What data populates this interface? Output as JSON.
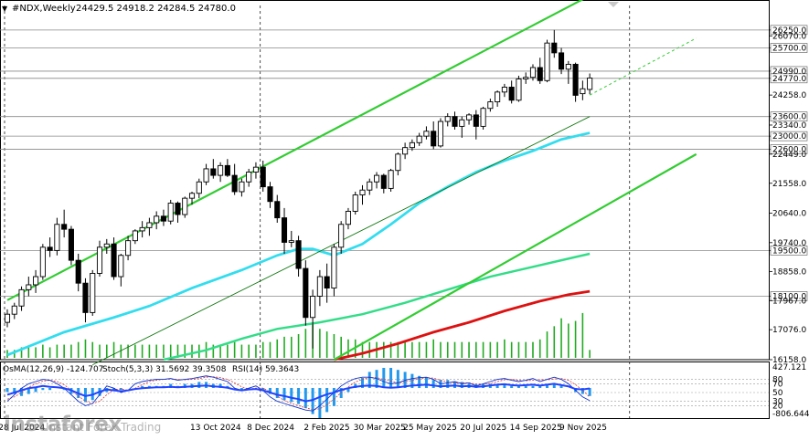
{
  "header": {
    "symbol": "#NDX,Weekly",
    "ohlc": "24429.5 24918.2 24284.5 24780.0"
  },
  "indicator_header": {
    "osma": "OsMA(12,26,9) -124.707",
    "stoch": "Stoch(5,3,3) 31.5692 39.3508",
    "rsi": "RSI(14) 59.3643"
  },
  "watermark": {
    "brand": "instaforex",
    "tagline": "Instant Forex Trading"
  },
  "colors": {
    "grid": "#e6e6e6",
    "candle": "#000000",
    "channel": "#33cc33",
    "ma_cyan": "#33ddee",
    "ma_green": "#33dd88",
    "ma_red": "#dd1111",
    "volume": "#22aa22",
    "osma_bar": "#2299ee",
    "stoch_main": "#1133cc",
    "stoch_signal": "#dd3333",
    "rsi": "#2244ff",
    "dotted_trend": "#33cc33",
    "thin_trend": "#117711"
  },
  "chart_data": {
    "type": "candlestick",
    "timeframe": "Weekly",
    "ylim": [
      16158.0,
      27000.0
    ],
    "y_ticks": [
      26250.0,
      26070.0,
      25700.0,
      24990.0,
      24770.0,
      24258.0,
      23600.0,
      23340.0,
      23000.0,
      22600.0,
      22449.0,
      21558.0,
      20640.0,
      19740.0,
      19500.0,
      18858.0,
      18100.0,
      17967.0,
      17076.0,
      16158.0
    ],
    "levels": [
      26250.0,
      25700.0,
      24990.0,
      24770.0,
      23600.0,
      23000.0,
      22600.0,
      19500.0,
      18100.0
    ],
    "x_labels": [
      "28 Jul 2024",
      "13 Oct 2024",
      "8 Dec 2024",
      "2 Feb 2025",
      "30 Mar 2025",
      "25 May 2025",
      "20 Jul 2025",
      "14 Sep 2025",
      "9 Nov 2025"
    ],
    "candles": [
      [
        17300,
        17700,
        17150,
        17550
      ],
      [
        17550,
        17900,
        17400,
        17800
      ],
      [
        17800,
        18400,
        17650,
        18300
      ],
      [
        18300,
        18700,
        18100,
        18450
      ],
      [
        18450,
        18900,
        18200,
        18700
      ],
      [
        18700,
        19700,
        18600,
        19600
      ],
      [
        19600,
        19900,
        19300,
        19500
      ],
      [
        19500,
        20500,
        19350,
        20300
      ],
      [
        20300,
        20750,
        19900,
        20150
      ],
      [
        20150,
        20250,
        19050,
        19200
      ],
      [
        19200,
        19400,
        18250,
        18500
      ],
      [
        18500,
        18650,
        17300,
        17600
      ],
      [
        17600,
        18900,
        17500,
        18800
      ],
      [
        18800,
        19800,
        18700,
        19600
      ],
      [
        19600,
        19850,
        19400,
        19700
      ],
      [
        19700,
        19900,
        18600,
        18700
      ],
      [
        18700,
        19400,
        18400,
        19350
      ],
      [
        19350,
        19950,
        19200,
        19800
      ],
      [
        19800,
        20150,
        19700,
        20100
      ],
      [
        20100,
        20400,
        19900,
        20200
      ],
      [
        20200,
        20500,
        19950,
        20350
      ],
      [
        20350,
        20700,
        20150,
        20550
      ],
      [
        20550,
        20750,
        20250,
        20400
      ],
      [
        20400,
        21050,
        20300,
        20950
      ],
      [
        20950,
        21000,
        20350,
        20600
      ],
      [
        20600,
        21150,
        20500,
        21100
      ],
      [
        21100,
        21300,
        20900,
        21250
      ],
      [
        21250,
        21700,
        21100,
        21600
      ],
      [
        21600,
        22150,
        21500,
        22000
      ],
      [
        22000,
        22300,
        21700,
        21800
      ],
      [
        21800,
        22200,
        21600,
        22100
      ],
      [
        22100,
        22300,
        21750,
        21800
      ],
      [
        21800,
        22150,
        21200,
        21300
      ],
      [
        21300,
        21700,
        21150,
        21600
      ],
      [
        21600,
        22000,
        21450,
        21900
      ],
      [
        21900,
        22200,
        21700,
        22050
      ],
      [
        22050,
        22250,
        21300,
        21450
      ],
      [
        21450,
        21600,
        20800,
        21000
      ],
      [
        21000,
        21200,
        20350,
        20500
      ],
      [
        20500,
        20800,
        19400,
        19750
      ],
      [
        19750,
        20100,
        19600,
        19800
      ],
      [
        19800,
        19950,
        18700,
        18950
      ],
      [
        18950,
        19200,
        17200,
        17450
      ],
      [
        17450,
        18300,
        16500,
        18100
      ],
      [
        18100,
        18900,
        17800,
        18700
      ],
      [
        18700,
        19100,
        17900,
        18350
      ],
      [
        18350,
        19700,
        18100,
        19600
      ],
      [
        19600,
        20400,
        19400,
        20300
      ],
      [
        20300,
        20800,
        20150,
        20700
      ],
      [
        20700,
        21300,
        20600,
        21200
      ],
      [
        21200,
        21500,
        20900,
        21350
      ],
      [
        21350,
        21700,
        21200,
        21600
      ],
      [
        21600,
        21900,
        21400,
        21800
      ],
      [
        21800,
        21850,
        21250,
        21400
      ],
      [
        21400,
        22000,
        21300,
        21950
      ],
      [
        21950,
        22500,
        21800,
        22450
      ],
      [
        22450,
        22800,
        22300,
        22650
      ],
      [
        22650,
        22900,
        22550,
        22800
      ],
      [
        22800,
        23100,
        22700,
        23000
      ],
      [
        23000,
        23300,
        22900,
        23150
      ],
      [
        23150,
        23450,
        22600,
        22700
      ],
      [
        22700,
        23550,
        22650,
        23450
      ],
      [
        23450,
        23700,
        23300,
        23600
      ],
      [
        23600,
        23750,
        23200,
        23300
      ],
      [
        23300,
        23600,
        22950,
        23500
      ],
      [
        23500,
        23700,
        23350,
        23650
      ],
      [
        23650,
        23800,
        22900,
        23300
      ],
      [
        23300,
        23900,
        23200,
        23850
      ],
      [
        23850,
        24150,
        23750,
        24050
      ],
      [
        24050,
        24400,
        23900,
        24350
      ],
      [
        24350,
        24600,
        24200,
        24500
      ],
      [
        24500,
        24700,
        24000,
        24100
      ],
      [
        24100,
        24850,
        24050,
        24750
      ],
      [
        24750,
        24950,
        24600,
        24800
      ],
      [
        24800,
        25200,
        24700,
        25100
      ],
      [
        25100,
        25400,
        24600,
        24700
      ],
      [
        24700,
        25950,
        24650,
        25850
      ],
      [
        25850,
        26250,
        25400,
        25550
      ],
      [
        25550,
        25700,
        24900,
        25050
      ],
      [
        25050,
        25300,
        24600,
        25200
      ],
      [
        25200,
        25250,
        24050,
        24250
      ],
      [
        24300,
        24700,
        24100,
        24450
      ],
      [
        24429.5,
        24918.2,
        24284.5,
        24780.0
      ]
    ],
    "volume": [
      3,
      3,
      4,
      4,
      4,
      5,
      4,
      5,
      5,
      5,
      6,
      7,
      6,
      5,
      5,
      6,
      5,
      5,
      5,
      5,
      5,
      5,
      5,
      5,
      5,
      5,
      5,
      5,
      6,
      5,
      5,
      5,
      6,
      5,
      5,
      5,
      6,
      6,
      7,
      8,
      8,
      9,
      11,
      13,
      11,
      10,
      9,
      8,
      7,
      7,
      6,
      6,
      6,
      6,
      6,
      6,
      6,
      6,
      6,
      6,
      7,
      6,
      6,
      6,
      6,
      6,
      6,
      6,
      6,
      6,
      7,
      6,
      6,
      6,
      6,
      7,
      10,
      12,
      15,
      13,
      14,
      17,
      3
    ],
    "volume_max": 18,
    "ma_cyan": [
      [
        0,
        16300
      ],
      [
        8,
        17000
      ],
      [
        15,
        17450
      ],
      [
        20,
        17800
      ],
      [
        26,
        18350
      ],
      [
        33,
        18900
      ],
      [
        38,
        19350
      ],
      [
        41,
        19550
      ],
      [
        43,
        19550
      ],
      [
        46,
        19350
      ],
      [
        50,
        19700
      ],
      [
        54,
        20300
      ],
      [
        58,
        20950
      ],
      [
        62,
        21450
      ],
      [
        66,
        21900
      ],
      [
        70,
        22250
      ],
      [
        74,
        22550
      ],
      [
        78,
        22900
      ],
      [
        82,
        23100
      ]
    ],
    "ma_green": [
      [
        22,
        16158
      ],
      [
        28,
        16450
      ],
      [
        33,
        16800
      ],
      [
        38,
        17100
      ],
      [
        44,
        17300
      ],
      [
        50,
        17550
      ],
      [
        56,
        17900
      ],
      [
        62,
        18300
      ],
      [
        68,
        18700
      ],
      [
        74,
        19000
      ],
      [
        78,
        19200
      ],
      [
        82,
        19400
      ]
    ],
    "ma_red": [
      [
        46,
        16158
      ],
      [
        50,
        16350
      ],
      [
        55,
        16650
      ],
      [
        60,
        17000
      ],
      [
        65,
        17300
      ],
      [
        70,
        17650
      ],
      [
        75,
        17950
      ],
      [
        79,
        18150
      ],
      [
        82,
        18250
      ]
    ],
    "osma": [
      -2,
      -3,
      -4,
      -3,
      -2,
      -1,
      -1,
      0,
      -1,
      -3,
      -5,
      -7,
      -6,
      -4,
      -2,
      -1,
      -1,
      0,
      0,
      1,
      1,
      1,
      1,
      2,
      1,
      2,
      2,
      3,
      3,
      2,
      2,
      1,
      0,
      -1,
      -1,
      0,
      -1,
      -3,
      -5,
      -6,
      -7,
      -8,
      -10,
      -13,
      -15,
      -12,
      -9,
      -5,
      -2,
      2,
      5,
      8,
      9,
      10,
      10,
      9,
      8,
      7,
      6,
      5,
      4,
      4,
      4,
      3,
      3,
      2,
      2,
      2,
      2,
      2,
      2,
      1,
      1,
      1,
      1,
      1,
      2,
      2,
      1,
      0,
      -2,
      -3,
      -4
    ],
    "stoch_main": [
      30,
      45,
      60,
      70,
      75,
      80,
      78,
      70,
      60,
      45,
      30,
      20,
      25,
      45,
      65,
      60,
      50,
      55,
      70,
      75,
      78,
      80,
      80,
      82,
      78,
      80,
      82,
      85,
      88,
      85,
      80,
      75,
      60,
      55,
      60,
      65,
      55,
      40,
      30,
      25,
      20,
      15,
      10,
      8,
      20,
      35,
      50,
      65,
      75,
      82,
      85,
      85,
      82,
      75,
      70,
      72,
      78,
      82,
      84,
      85,
      80,
      70,
      72,
      75,
      70,
      72,
      65,
      70,
      75,
      80,
      82,
      78,
      75,
      78,
      82,
      75,
      80,
      85,
      80,
      70,
      55,
      40,
      31.5692
    ],
    "stoch_signal": [
      35,
      40,
      50,
      62,
      70,
      76,
      78,
      75,
      68,
      55,
      42,
      30,
      25,
      30,
      45,
      57,
      58,
      55,
      60,
      68,
      75,
      78,
      80,
      81,
      80,
      79,
      80,
      82,
      85,
      86,
      84,
      80,
      72,
      63,
      58,
      60,
      60,
      52,
      42,
      32,
      25,
      20,
      15,
      11,
      13,
      22,
      35,
      50,
      63,
      74,
      80,
      84,
      84,
      80,
      76,
      72,
      74,
      78,
      81,
      84,
      83,
      78,
      74,
      72,
      72,
      72,
      69,
      69,
      70,
      75,
      79,
      80,
      78,
      77,
      78,
      79,
      79,
      81,
      82,
      78,
      68,
      55,
      39.3508
    ],
    "rsi": [
      45,
      50,
      55,
      60,
      62,
      65,
      63,
      62,
      60,
      55,
      48,
      42,
      45,
      52,
      57,
      55,
      53,
      55,
      58,
      60,
      61,
      62,
      62,
      63,
      62,
      63,
      64,
      65,
      66,
      64,
      63,
      61,
      57,
      55,
      57,
      58,
      55,
      50,
      45,
      42,
      38,
      35,
      30,
      33,
      40,
      46,
      50,
      56,
      60,
      63,
      65,
      66,
      65,
      62,
      61,
      62,
      64,
      66,
      67,
      68,
      66,
      64,
      65,
      66,
      64,
      65,
      63,
      64,
      66,
      68,
      69,
      67,
      66,
      67,
      68,
      66,
      68,
      70,
      67,
      64,
      58,
      57,
      59.3643
    ],
    "sub_ticks": [
      "427.121",
      "80",
      "70",
      "50",
      "30",
      "20",
      "-806.644"
    ],
    "channel_lines": [
      {
        "role": "upper",
        "p1": [
          0,
          17980
        ],
        "p2": [
          82,
          27300
        ]
      },
      {
        "role": "lower",
        "p1": [
          46,
          16158
        ],
        "p2": [
          97,
          22449
        ]
      }
    ],
    "mid_trend": {
      "p1": [
        12,
        16000
      ],
      "p2": [
        82,
        23600
      ]
    },
    "dotted_trend": {
      "p1": [
        82,
        24258
      ],
      "p2": [
        97,
        26000
      ]
    }
  }
}
